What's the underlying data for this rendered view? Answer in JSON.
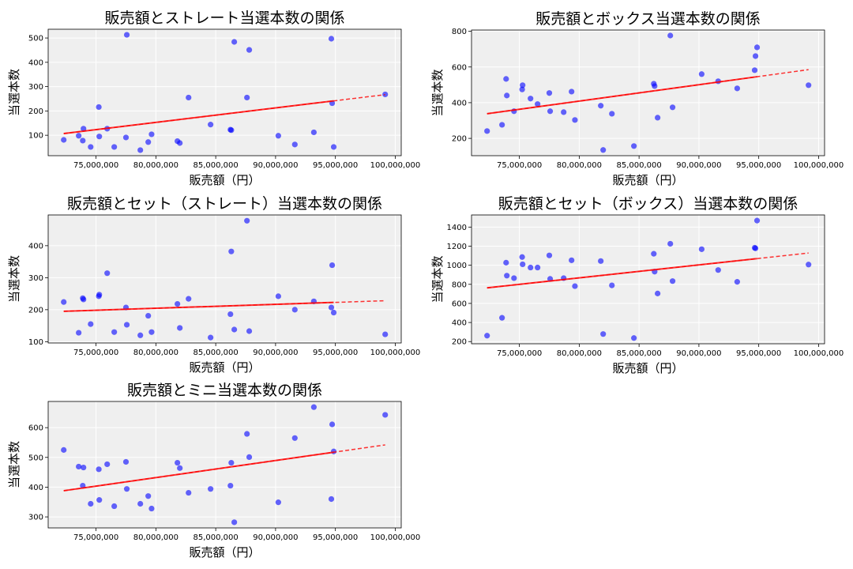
{
  "chart_data": [
    {
      "type": "scatter",
      "title": "販売額とストレート当選本数の関係",
      "xlabel": "販売額（円）",
      "ylabel": "当選本数",
      "xlim": [
        71000000,
        100500000
      ],
      "ylim": [
        16,
        536
      ],
      "xticks": [
        75000000,
        80000000,
        85000000,
        90000000,
        95000000,
        100000000
      ],
      "xtick_labels": [
        "75,000,000",
        "80,000,000",
        "85,000,000",
        "90,000,000",
        "95,000,000",
        "100,000,000"
      ],
      "yticks": [
        100,
        200,
        300,
        400,
        500
      ],
      "ytick_labels": [
        "100",
        "200",
        "300",
        "400",
        "500"
      ],
      "grid": true,
      "x": [
        72300000,
        73550000,
        73890000,
        73950000,
        74550000,
        75230000,
        75270000,
        75930000,
        76520000,
        77500000,
        77570000,
        78700000,
        79360000,
        79640000,
        81800000,
        82000000,
        82730000,
        84570000,
        86230000,
        86300000,
        86550000,
        87610000,
        87800000,
        90230000,
        91610000,
        93200000,
        94660000,
        94730000,
        94860000,
        99160000
      ],
      "y": [
        81,
        98,
        78,
        127,
        52,
        216,
        95,
        127,
        52,
        91,
        513,
        39,
        72,
        104,
        76,
        68,
        255,
        144,
        123,
        121,
        484,
        255,
        451,
        98,
        62,
        112,
        497,
        232,
        52,
        268
      ],
      "trend": {
        "x": [
          72300000,
          99160000
        ],
        "y": [
          107,
          267
        ],
        "solid_until": 94860000
      }
    },
    {
      "type": "scatter",
      "title": "販売額とボックス当選本数の関係",
      "xlabel": "販売額（円）",
      "ylabel": "当選本数",
      "xlim": [
        71000000,
        100500000
      ],
      "ylim": [
        103,
        807
      ],
      "xticks": [
        75000000,
        80000000,
        85000000,
        90000000,
        95000000,
        100000000
      ],
      "xtick_labels": [
        "75,000,000",
        "80,000,000",
        "85,000,000",
        "90,000,000",
        "95,000,000",
        "100,000,000"
      ],
      "yticks": [
        200,
        400,
        600,
        800
      ],
      "ytick_labels": [
        "200",
        "400",
        "600",
        "800"
      ],
      "grid": true,
      "x": [
        72300000,
        73550000,
        73890000,
        73950000,
        74550000,
        75230000,
        75270000,
        75930000,
        76520000,
        77500000,
        77570000,
        78700000,
        79360000,
        79640000,
        81800000,
        82000000,
        82730000,
        84570000,
        86230000,
        86300000,
        86550000,
        87610000,
        87800000,
        90230000,
        91610000,
        93200000,
        94660000,
        94730000,
        94860000,
        99160000
      ],
      "y": [
        241,
        276,
        533,
        440,
        352,
        474,
        498,
        423,
        392,
        454,
        352,
        347,
        462,
        303,
        383,
        135,
        338,
        157,
        506,
        493,
        316,
        776,
        374,
        560,
        520,
        480,
        582,
        661,
        710,
        498
      ],
      "trend": {
        "x": [
          72300000,
          99160000
        ],
        "y": [
          338,
          585
        ],
        "solid_until": 94860000
      }
    },
    {
      "type": "scatter",
      "title": "販売額とセット（ストレート）当選本数の関係",
      "xlabel": "販売額（円）",
      "ylabel": "当選本数",
      "xlim": [
        71000000,
        100500000
      ],
      "ylim": [
        96,
        496
      ],
      "xticks": [
        75000000,
        80000000,
        85000000,
        90000000,
        95000000,
        100000000
      ],
      "xtick_labels": [
        "75,000,000",
        "80,000,000",
        "85,000,000",
        "90,000,000",
        "95,000,000",
        "100,000,000"
      ],
      "yticks": [
        100,
        200,
        300,
        400
      ],
      "ytick_labels": [
        "100",
        "200",
        "300",
        "400"
      ],
      "grid": true,
      "x": [
        72300000,
        73550000,
        73890000,
        73950000,
        74550000,
        75230000,
        75270000,
        75930000,
        76520000,
        77500000,
        77570000,
        78700000,
        79360000,
        79640000,
        81800000,
        82000000,
        82730000,
        84570000,
        86230000,
        86300000,
        86550000,
        87610000,
        87800000,
        90230000,
        91610000,
        93200000,
        94660000,
        94730000,
        94860000,
        99160000
      ],
      "y": [
        224,
        128,
        236,
        232,
        155,
        242,
        247,
        314,
        130,
        207,
        153,
        120,
        181,
        130,
        218,
        143,
        234,
        113,
        186,
        382,
        138,
        478,
        133,
        242,
        200,
        226,
        207,
        339,
        191,
        123
      ],
      "trend": {
        "x": [
          72300000,
          99160000
        ],
        "y": [
          195,
          228
        ],
        "solid_until": 94860000
      }
    },
    {
      "type": "scatter",
      "title": "販売額とセット（ボックス）当選本数の関係",
      "xlabel": "販売額（円）",
      "ylabel": "当選本数",
      "xlim": [
        71000000,
        100500000
      ],
      "ylim": [
        177,
        1527
      ],
      "xticks": [
        75000000,
        80000000,
        85000000,
        90000000,
        95000000,
        100000000
      ],
      "xtick_labels": [
        "75,000,000",
        "80,000,000",
        "85,000,000",
        "90,000,000",
        "95,000,000",
        "100,000,000"
      ],
      "yticks": [
        200,
        400,
        600,
        800,
        1000,
        1200,
        1400
      ],
      "ytick_labels": [
        "200",
        "400",
        "600",
        "800",
        "1000",
        "1200",
        "1400"
      ],
      "grid": true,
      "x": [
        72300000,
        73550000,
        73890000,
        73950000,
        74550000,
        75230000,
        75270000,
        75930000,
        76520000,
        77500000,
        77570000,
        78700000,
        79360000,
        79640000,
        81800000,
        82000000,
        82730000,
        84570000,
        86230000,
        86300000,
        86550000,
        87610000,
        87800000,
        90230000,
        91610000,
        93200000,
        94660000,
        94730000,
        94860000,
        99160000
      ],
      "y": [
        262,
        449,
        1027,
        891,
        865,
        1086,
        1010,
        976,
        976,
        1103,
        857,
        865,
        1052,
        781,
        1044,
        279,
        789,
        237,
        1120,
        933,
        704,
        1225,
        834,
        1168,
        950,
        826,
        1183,
        1177,
        1468,
        1007
      ],
      "trend": {
        "x": [
          72300000,
          99160000
        ],
        "y": [
          763,
          1128
        ],
        "solid_until": 94860000
      }
    },
    {
      "type": "scatter",
      "title": "販売額とミニ当選本数の関係",
      "xlabel": "販売額（円）",
      "ylabel": "当選本数",
      "xlim": [
        71000000,
        100500000
      ],
      "ylim": [
        263,
        688
      ],
      "xticks": [
        75000000,
        80000000,
        85000000,
        90000000,
        95000000,
        100000000
      ],
      "xtick_labels": [
        "75,000,000",
        "80,000,000",
        "85,000,000",
        "90,000,000",
        "95,000,000",
        "100,000,000"
      ],
      "yticks": [
        300,
        400,
        500,
        600
      ],
      "ytick_labels": [
        "300",
        "400",
        "500",
        "600"
      ],
      "grid": true,
      "x": [
        72300000,
        73550000,
        73890000,
        73950000,
        74550000,
        75230000,
        75270000,
        75930000,
        76520000,
        77500000,
        77570000,
        78700000,
        79360000,
        79640000,
        81800000,
        82000000,
        82730000,
        84570000,
        86230000,
        86300000,
        86550000,
        87610000,
        87800000,
        90230000,
        91610000,
        93200000,
        94660000,
        94730000,
        94860000,
        99160000
      ],
      "y": [
        525,
        469,
        405,
        466,
        344,
        460,
        357,
        477,
        336,
        485,
        394,
        344,
        370,
        328,
        482,
        464,
        381,
        394,
        405,
        482,
        282,
        579,
        501,
        349,
        565,
        669,
        360,
        611,
        520,
        643
      ],
      "trend": {
        "x": [
          72300000,
          99160000
        ],
        "y": [
          388,
          542
        ],
        "solid_until": 94860000
      }
    }
  ],
  "colors": {
    "point": "#0000ff",
    "trend": "#ff0000",
    "plot_bg": "#efefef",
    "grid": "#ffffff"
  }
}
